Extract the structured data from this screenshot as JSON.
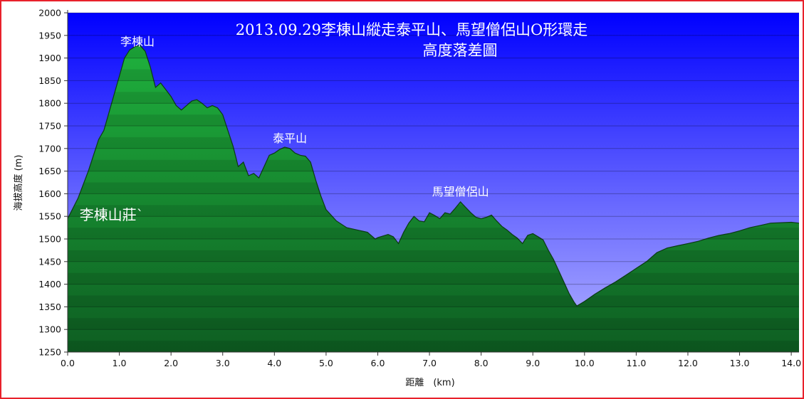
{
  "chart_data": {
    "type": "area",
    "title": "2013.09.29李棟山縱走泰平山、馬望僧侶山O形環走",
    "subtitle": "高度落差圖",
    "xlabel": "距離　(km)",
    "ylabel": "海拔高度 (m)",
    "xlim": [
      0,
      14.15
    ],
    "ylim": [
      1250,
      2000
    ],
    "x_ticks": [
      "0.0",
      "1.0",
      "2.0",
      "3.0",
      "4.0",
      "5.0",
      "6.0",
      "7.0",
      "8.0",
      "9.0",
      "10.0",
      "11.0",
      "12.0",
      "13.0",
      "14.0"
    ],
    "y_ticks": [
      "2000",
      "1950",
      "1900",
      "1850",
      "1800",
      "1750",
      "1700",
      "1650",
      "1600",
      "1550",
      "1500",
      "1450",
      "1400",
      "1350",
      "1300",
      "1250"
    ],
    "grid": true,
    "colors": {
      "plot_bg_top": "#0000ff",
      "plot_bg_bottom": "#b4b4ff",
      "area_top": "#1fb13d",
      "area_bottom": "#0e5e22",
      "frame": "#e8212b"
    },
    "annotations": [
      {
        "text": "李棟山",
        "x": 1.35,
        "y": 1915
      },
      {
        "text": "泰平山",
        "x": 4.3,
        "y": 1701
      },
      {
        "text": "馬望僧侶山",
        "x": 7.6,
        "y": 1583
      },
      {
        "text": "李棟山莊`",
        "x": 0.85,
        "y": 1530
      }
    ],
    "series": [
      {
        "points": [
          [
            0.0,
            1545
          ],
          [
            0.2,
            1590
          ],
          [
            0.4,
            1650
          ],
          [
            0.6,
            1720
          ],
          [
            0.7,
            1740
          ],
          [
            0.8,
            1780
          ],
          [
            0.9,
            1820
          ],
          [
            1.0,
            1860
          ],
          [
            1.1,
            1900
          ],
          [
            1.2,
            1918
          ],
          [
            1.3,
            1925
          ],
          [
            1.4,
            1928
          ],
          [
            1.5,
            1915
          ],
          [
            1.6,
            1880
          ],
          [
            1.7,
            1835
          ],
          [
            1.8,
            1845
          ],
          [
            1.9,
            1830
          ],
          [
            2.0,
            1815
          ],
          [
            2.1,
            1795
          ],
          [
            2.2,
            1785
          ],
          [
            2.3,
            1795
          ],
          [
            2.4,
            1805
          ],
          [
            2.5,
            1808
          ],
          [
            2.6,
            1800
          ],
          [
            2.7,
            1790
          ],
          [
            2.8,
            1795
          ],
          [
            2.9,
            1790
          ],
          [
            3.0,
            1775
          ],
          [
            3.1,
            1740
          ],
          [
            3.2,
            1705
          ],
          [
            3.3,
            1660
          ],
          [
            3.4,
            1670
          ],
          [
            3.5,
            1640
          ],
          [
            3.6,
            1645
          ],
          [
            3.7,
            1635
          ],
          [
            3.8,
            1660
          ],
          [
            3.9,
            1685
          ],
          [
            4.0,
            1690
          ],
          [
            4.1,
            1698
          ],
          [
            4.2,
            1703
          ],
          [
            4.3,
            1700
          ],
          [
            4.4,
            1690
          ],
          [
            4.5,
            1685
          ],
          [
            4.6,
            1683
          ],
          [
            4.7,
            1670
          ],
          [
            4.8,
            1630
          ],
          [
            4.9,
            1595
          ],
          [
            5.0,
            1565
          ],
          [
            5.2,
            1540
          ],
          [
            5.4,
            1525
          ],
          [
            5.6,
            1520
          ],
          [
            5.8,
            1515
          ],
          [
            5.95,
            1500
          ],
          [
            6.0,
            1503
          ],
          [
            6.2,
            1510
          ],
          [
            6.3,
            1505
          ],
          [
            6.4,
            1490
          ],
          [
            6.5,
            1515
          ],
          [
            6.6,
            1535
          ],
          [
            6.7,
            1550
          ],
          [
            6.8,
            1540
          ],
          [
            6.9,
            1538
          ],
          [
            7.0,
            1558
          ],
          [
            7.1,
            1552
          ],
          [
            7.2,
            1545
          ],
          [
            7.3,
            1558
          ],
          [
            7.4,
            1555
          ],
          [
            7.5,
            1568
          ],
          [
            7.6,
            1582
          ],
          [
            7.7,
            1570
          ],
          [
            7.8,
            1558
          ],
          [
            7.9,
            1548
          ],
          [
            8.0,
            1545
          ],
          [
            8.1,
            1548
          ],
          [
            8.2,
            1553
          ],
          [
            8.3,
            1540
          ],
          [
            8.4,
            1528
          ],
          [
            8.5,
            1520
          ],
          [
            8.6,
            1510
          ],
          [
            8.7,
            1502
          ],
          [
            8.8,
            1490
          ],
          [
            8.9,
            1508
          ],
          [
            9.0,
            1512
          ],
          [
            9.1,
            1505
          ],
          [
            9.2,
            1498
          ],
          [
            9.3,
            1475
          ],
          [
            9.4,
            1455
          ],
          [
            9.5,
            1430
          ],
          [
            9.6,
            1405
          ],
          [
            9.7,
            1380
          ],
          [
            9.8,
            1360
          ],
          [
            9.85,
            1352
          ],
          [
            9.9,
            1355
          ],
          [
            10.0,
            1362
          ],
          [
            10.2,
            1378
          ],
          [
            10.4,
            1392
          ],
          [
            10.6,
            1405
          ],
          [
            10.8,
            1420
          ],
          [
            11.0,
            1435
          ],
          [
            11.2,
            1450
          ],
          [
            11.4,
            1470
          ],
          [
            11.6,
            1480
          ],
          [
            11.8,
            1485
          ],
          [
            12.0,
            1490
          ],
          [
            12.2,
            1495
          ],
          [
            12.4,
            1502
          ],
          [
            12.6,
            1508
          ],
          [
            12.8,
            1512
          ],
          [
            13.0,
            1518
          ],
          [
            13.2,
            1525
          ],
          [
            13.4,
            1530
          ],
          [
            13.6,
            1535
          ],
          [
            13.8,
            1536
          ],
          [
            14.0,
            1537
          ],
          [
            14.15,
            1535
          ]
        ]
      }
    ]
  }
}
